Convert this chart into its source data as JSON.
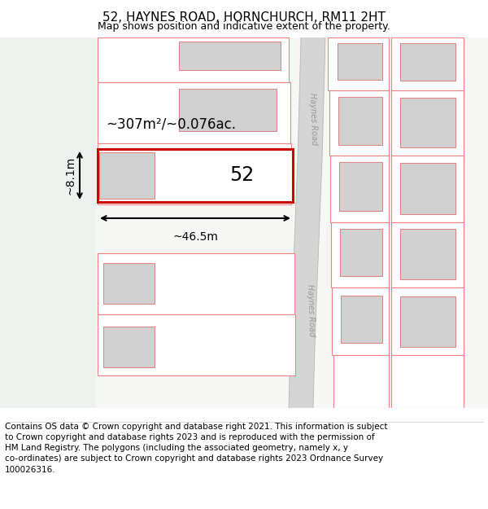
{
  "title": "52, HAYNES ROAD, HORNCHURCH, RM11 2HT",
  "subtitle": "Map shows position and indicative extent of the property.",
  "footer": "Contains OS data © Crown copyright and database right 2021. This information is subject\nto Crown copyright and database rights 2023 and is reproduced with the permission of\nHM Land Registry. The polygons (including the associated geometry, namely x, y\nco-ordinates) are subject to Crown copyright and database rights 2023 Ordnance Survey\n100026316.",
  "area_text": "~307m²/~0.076ac.",
  "width_text": "~46.5m",
  "height_text": "~8.1m",
  "number_text": "52",
  "road_label_upper": "Haynes Road",
  "road_label_lower": "Haynes Road",
  "map_bg": "#f7f7f5",
  "left_bg": "#eef2ee",
  "road_fill": "#d5d5d5",
  "plot_edge": "#f28080",
  "bld_fill": "#d0d0d0",
  "bld_edge": "#e08080",
  "highlight_edge": "#cc0000",
  "title_fontsize": 11,
  "subtitle_fontsize": 9,
  "footer_fontsize": 7.5
}
